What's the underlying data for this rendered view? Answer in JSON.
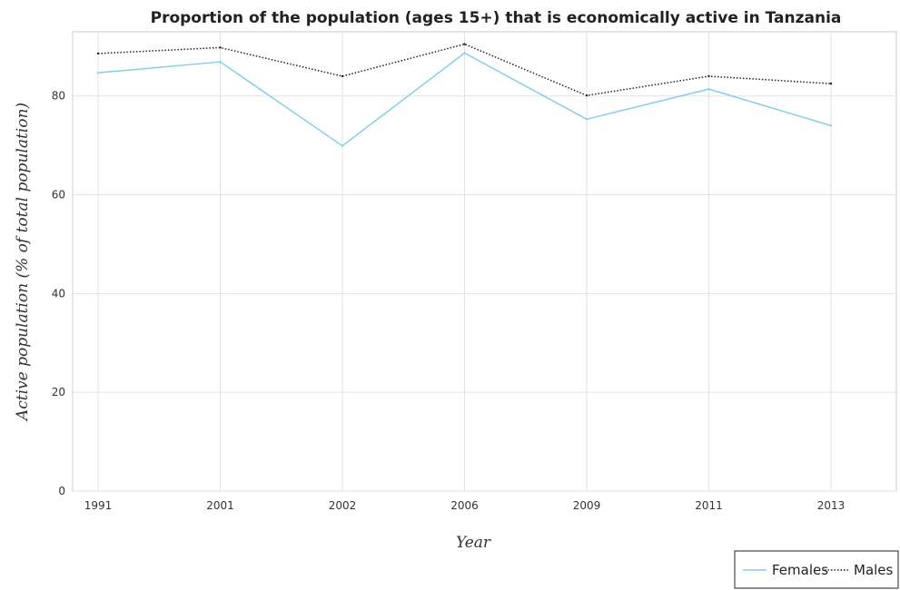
{
  "chart_data": {
    "type": "line",
    "title": "Proportion of the population (ages 15+) that is economically active in Tanzania",
    "xlabel": "Year",
    "ylabel": "Active population (% of total population)",
    "categories": [
      "1991",
      "2001",
      "2002",
      "2006",
      "2009",
      "2011",
      "2013"
    ],
    "yticks": [
      0,
      20,
      40,
      60,
      80
    ],
    "ylim": [
      0,
      93
    ],
    "grid": true,
    "legend_position": "bottom-right",
    "series": [
      {
        "name": "Females",
        "color": "#87ceeb",
        "dash": "solid",
        "values": [
          84.7,
          86.9,
          69.9,
          88.7,
          75.3,
          81.4,
          74.0
        ]
      },
      {
        "name": "Males",
        "color": "#222222",
        "dash": "dotted",
        "values": [
          88.6,
          89.8,
          84.0,
          90.5,
          80.1,
          84.0,
          82.5
        ]
      }
    ]
  }
}
